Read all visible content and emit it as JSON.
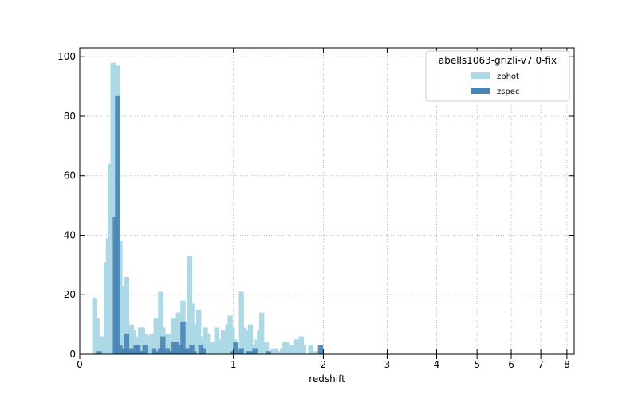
{
  "chart_data": {
    "type": "bar",
    "title": "",
    "xlabel": "redshift",
    "ylabel": "",
    "x_scale": "log(1+z)",
    "xlim": [
      0,
      8.3
    ],
    "ylim": [
      0,
      103
    ],
    "x_ticks": [
      0,
      1,
      2,
      3,
      4,
      5,
      6,
      7,
      8
    ],
    "x_tick_labels": [
      "0",
      "1",
      "2",
      "3",
      "4",
      "5",
      "6",
      "7",
      "8"
    ],
    "y_ticks": [
      0,
      20,
      40,
      60,
      80,
      100
    ],
    "y_tick_labels": [
      "0",
      "20",
      "40",
      "60",
      "80",
      "100"
    ],
    "grid": true,
    "grid_style": "dotted",
    "legend": {
      "title": "abells1063-grizli-v7.0-fix",
      "placement": "top-right"
    },
    "bin_width_log1pz": 0.01,
    "series": [
      {
        "name": "zphot",
        "color": "#add8e6",
        "bins": [
          {
            "z": 0.07,
            "count": 19
          },
          {
            "z": 0.081,
            "count": 12
          },
          {
            "z": 0.092,
            "count": 3
          },
          {
            "z": 0.104,
            "count": 6
          },
          {
            "z": 0.115,
            "count": 6
          },
          {
            "z": 0.127,
            "count": 31
          },
          {
            "z": 0.138,
            "count": 39
          },
          {
            "z": 0.15,
            "count": 64
          },
          {
            "z": 0.162,
            "count": 98
          },
          {
            "z": 0.174,
            "count": 86
          },
          {
            "z": 0.186,
            "count": 97
          },
          {
            "z": 0.199,
            "count": 38
          },
          {
            "z": 0.211,
            "count": 20
          },
          {
            "z": 0.224,
            "count": 23
          },
          {
            "z": 0.236,
            "count": 26
          },
          {
            "z": 0.249,
            "count": 5
          },
          {
            "z": 0.262,
            "count": 10
          },
          {
            "z": 0.275,
            "count": 8
          },
          {
            "z": 0.288,
            "count": 6
          },
          {
            "z": 0.301,
            "count": 4
          },
          {
            "z": 0.315,
            "count": 9
          },
          {
            "z": 0.328,
            "count": 9
          },
          {
            "z": 0.342,
            "count": 7
          },
          {
            "z": 0.355,
            "count": 6
          },
          {
            "z": 0.383,
            "count": 7
          },
          {
            "z": 0.397,
            "count": 3
          },
          {
            "z": 0.411,
            "count": 12
          },
          {
            "z": 0.426,
            "count": 5
          },
          {
            "z": 0.44,
            "count": 21
          },
          {
            "z": 0.455,
            "count": 9
          },
          {
            "z": 0.484,
            "count": 7
          },
          {
            "z": 0.499,
            "count": 7
          },
          {
            "z": 0.514,
            "count": 5
          },
          {
            "z": 0.53,
            "count": 12
          },
          {
            "z": 0.545,
            "count": 10
          },
          {
            "z": 0.561,
            "count": 14
          },
          {
            "z": 0.577,
            "count": 14
          },
          {
            "z": 0.593,
            "count": 18
          },
          {
            "z": 0.609,
            "count": 10
          },
          {
            "z": 0.625,
            "count": 11
          },
          {
            "z": 0.642,
            "count": 33
          },
          {
            "z": 0.658,
            "count": 17
          },
          {
            "z": 0.675,
            "count": 10
          },
          {
            "z": 0.692,
            "count": 10
          },
          {
            "z": 0.71,
            "count": 15
          },
          {
            "z": 0.727,
            "count": 6
          },
          {
            "z": 0.745,
            "count": 4
          },
          {
            "z": 0.762,
            "count": 9
          },
          {
            "z": 0.78,
            "count": 7
          },
          {
            "z": 0.798,
            "count": 3
          },
          {
            "z": 0.816,
            "count": 4
          },
          {
            "z": 0.835,
            "count": 2
          },
          {
            "z": 0.854,
            "count": 9
          },
          {
            "z": 0.872,
            "count": 2
          },
          {
            "z": 0.891,
            "count": 5
          },
          {
            "z": 0.91,
            "count": 8
          },
          {
            "z": 0.95,
            "count": 10
          },
          {
            "z": 0.97,
            "count": 13
          },
          {
            "z": 0.99,
            "count": 9
          },
          {
            "z": 1.01,
            "count": 5
          },
          {
            "z": 1.031,
            "count": 2
          },
          {
            "z": 1.052,
            "count": 2
          },
          {
            "z": 1.073,
            "count": 21
          },
          {
            "z": 1.094,
            "count": 9
          },
          {
            "z": 1.115,
            "count": 2
          },
          {
            "z": 1.137,
            "count": 8
          },
          {
            "z": 1.159,
            "count": 10
          },
          {
            "z": 1.181,
            "count": 3
          },
          {
            "z": 1.203,
            "count": 3
          },
          {
            "z": 1.226,
            "count": 5
          },
          {
            "z": 1.249,
            "count": 8
          },
          {
            "z": 1.272,
            "count": 14
          },
          {
            "z": 1.32,
            "count": 4
          },
          {
            "z": 1.344,
            "count": 1
          },
          {
            "z": 1.393,
            "count": 2
          },
          {
            "z": 1.418,
            "count": 2
          },
          {
            "z": 1.443,
            "count": 1
          },
          {
            "z": 1.469,
            "count": 1
          },
          {
            "z": 1.495,
            "count": 2
          },
          {
            "z": 1.521,
            "count": 4
          },
          {
            "z": 1.548,
            "count": 4
          },
          {
            "z": 1.575,
            "count": 2
          },
          {
            "z": 1.603,
            "count": 3
          },
          {
            "z": 1.63,
            "count": 3
          },
          {
            "z": 1.659,
            "count": 5
          },
          {
            "z": 1.687,
            "count": 3
          },
          {
            "z": 1.716,
            "count": 6
          },
          {
            "z": 1.745,
            "count": 3
          },
          {
            "z": 1.836,
            "count": 3
          },
          {
            "z": 1.867,
            "count": 1
          },
          {
            "z": 1.93,
            "count": 1
          },
          {
            "z": 1.962,
            "count": 2
          }
        ]
      },
      {
        "name": "zspec",
        "color": "#4a86b4",
        "bins": [
          {
            "z": 0.092,
            "count": 1
          },
          {
            "z": 0.174,
            "count": 46
          },
          {
            "z": 0.186,
            "count": 87
          },
          {
            "z": 0.199,
            "count": 3
          },
          {
            "z": 0.211,
            "count": 2
          },
          {
            "z": 0.224,
            "count": 2
          },
          {
            "z": 0.236,
            "count": 7
          },
          {
            "z": 0.249,
            "count": 1
          },
          {
            "z": 0.262,
            "count": 2
          },
          {
            "z": 0.275,
            "count": 1
          },
          {
            "z": 0.288,
            "count": 3
          },
          {
            "z": 0.301,
            "count": 3
          },
          {
            "z": 0.315,
            "count": 1
          },
          {
            "z": 0.328,
            "count": 1
          },
          {
            "z": 0.342,
            "count": 3
          },
          {
            "z": 0.397,
            "count": 2
          },
          {
            "z": 0.411,
            "count": 1
          },
          {
            "z": 0.44,
            "count": 2
          },
          {
            "z": 0.455,
            "count": 6
          },
          {
            "z": 0.484,
            "count": 2
          },
          {
            "z": 0.499,
            "count": 1
          },
          {
            "z": 0.514,
            "count": 1
          },
          {
            "z": 0.53,
            "count": 4
          },
          {
            "z": 0.545,
            "count": 4
          },
          {
            "z": 0.561,
            "count": 1
          },
          {
            "z": 0.577,
            "count": 3
          },
          {
            "z": 0.593,
            "count": 11
          },
          {
            "z": 0.609,
            "count": 2
          },
          {
            "z": 0.625,
            "count": 2
          },
          {
            "z": 0.642,
            "count": 1
          },
          {
            "z": 0.658,
            "count": 3
          },
          {
            "z": 0.675,
            "count": 1
          },
          {
            "z": 0.727,
            "count": 3
          },
          {
            "z": 0.745,
            "count": 2
          },
          {
            "z": 0.998,
            "count": 1
          },
          {
            "z": 1.02,
            "count": 4
          },
          {
            "z": 1.052,
            "count": 1
          },
          {
            "z": 1.073,
            "count": 2
          },
          {
            "z": 1.137,
            "count": 1
          },
          {
            "z": 1.159,
            "count": 1
          },
          {
            "z": 1.203,
            "count": 2
          },
          {
            "z": 1.344,
            "count": 1
          },
          {
            "z": 1.962,
            "count": 3
          }
        ]
      }
    ]
  }
}
